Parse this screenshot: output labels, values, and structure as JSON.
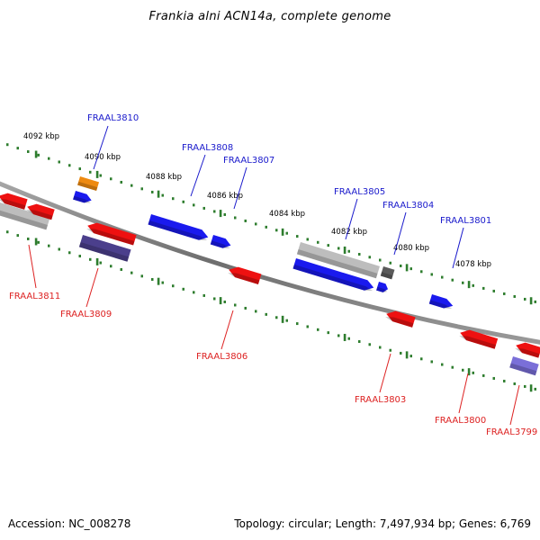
{
  "title": "Frankia alni ACN14a, complete genome",
  "footer": {
    "accession": "Accession: NC_008278",
    "topology": "Topology: circular; Length: 7,497,934 bp; Genes: 6,769"
  },
  "colors": {
    "backbone": "#7a7a7a",
    "tick": "#2e7d2e",
    "forward_label": "#1a1acc",
    "reverse_label": "#dd2222",
    "gene_blue": "#1a1aee",
    "gene_red": "#ee1111",
    "gene_gray": "#bdbdbd",
    "gene_darkgray": "#5a5a5a",
    "gene_orange": "#ee8a10",
    "gene_navy": "#4b3f8c",
    "gene_lavender": "#7a6fd8"
  },
  "kbp_labels": [
    "4092 kbp",
    "4090 kbp",
    "4088 kbp",
    "4086 kbp",
    "4084 kbp",
    "4082 kbp",
    "4080 kbp",
    "4078 kbp"
  ],
  "forward_genes": [
    "FRAAL3810",
    "FRAAL3808",
    "FRAAL3807",
    "FRAAL3805",
    "FRAAL3804",
    "FRAAL3801"
  ],
  "reverse_genes": [
    "FRAAL3811",
    "FRAAL3809",
    "FRAAL3806",
    "FRAAL3803",
    "FRAAL3800",
    "FRAAL3799"
  ]
}
